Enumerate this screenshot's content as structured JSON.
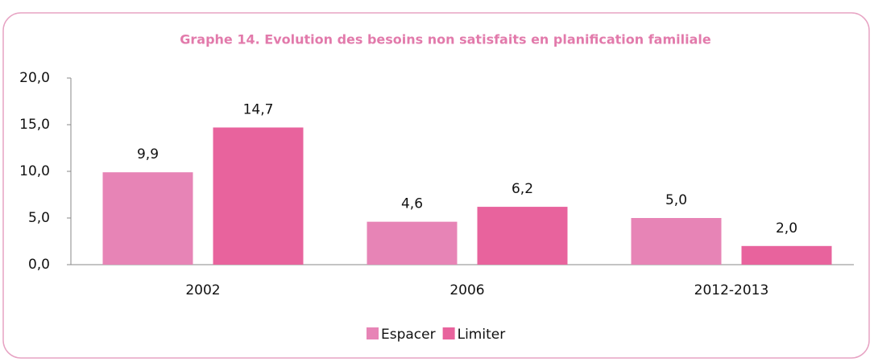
{
  "chart_data": {
    "type": "bar",
    "title": "Graphe 14. Evolution des besoins non satisfaits en planification familiale",
    "categories": [
      "2002",
      "2006",
      "2012-2013"
    ],
    "series": [
      {
        "name": "Espacer",
        "color": "#e784b6",
        "values": [
          9.9,
          4.6,
          5.0
        ],
        "value_labels": [
          "9,9",
          "4,6",
          "5,0"
        ]
      },
      {
        "name": "Limiter",
        "color": "#e8639d",
        "values": [
          14.7,
          6.2,
          2.0
        ],
        "value_labels": [
          "14,7",
          "6,2",
          "2,0"
        ]
      }
    ],
    "ylim": [
      0,
      20
    ],
    "yticks": [
      {
        "value": 0,
        "label": "0,0"
      },
      {
        "value": 5,
        "label": "5,0"
      },
      {
        "value": 10,
        "label": "10,0"
      },
      {
        "value": 15,
        "label": "15,0"
      },
      {
        "value": 20,
        "label": "20,0"
      }
    ],
    "grid": false,
    "legend": "bottom"
  }
}
